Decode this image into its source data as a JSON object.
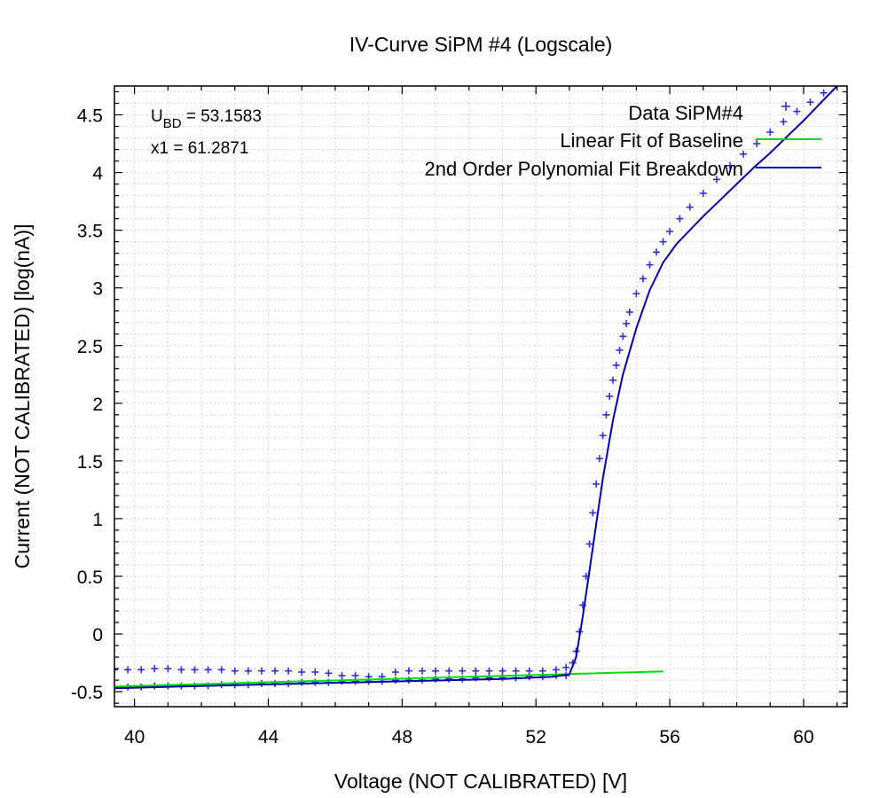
{
  "chart_data": {
    "type": "scatter",
    "title": "IV-Curve SiPM #4 (Logscale)",
    "xlabel": "Voltage (NOT CALIBRATED) [V]",
    "ylabel": "Current (NOT CALIBRATED) [log(nA)]",
    "xlim": [
      39.4,
      61.3
    ],
    "ylim": [
      -0.63,
      4.75
    ],
    "xticks": [
      40,
      44,
      48,
      52,
      56,
      60
    ],
    "yticks": [
      -0.5,
      0,
      0.5,
      1,
      1.5,
      2,
      2.5,
      3,
      3.5,
      4,
      4.5
    ],
    "xtick_labels": [
      "40",
      "44",
      "48",
      "52",
      "56",
      "60"
    ],
    "ytick_labels": [
      "-0.5",
      "0",
      "0.5",
      "1",
      "1.5",
      "2",
      "2.5",
      "3",
      "3.5",
      "4",
      "4.5"
    ],
    "grid": true,
    "legend_position": "top-right",
    "annotations": {
      "ubd_prefix": "U",
      "ubd_sub": "BD",
      "ubd_value": " = 53.1583",
      "x1": "x1 = 61.2871"
    },
    "series": [
      {
        "name": "Data SiPM#4",
        "kind": "points",
        "marker": "+",
        "color": "#2f2fe0",
        "x": [
          39.4,
          39.8,
          40.2,
          40.6,
          41.0,
          41.4,
          41.8,
          42.2,
          42.6,
          43.0,
          43.4,
          43.8,
          44.2,
          44.6,
          45.0,
          45.4,
          45.8,
          46.2,
          46.6,
          47.0,
          47.4,
          47.8,
          48.2,
          48.6,
          49.0,
          49.4,
          49.8,
          50.2,
          50.6,
          51.0,
          51.4,
          51.8,
          52.2,
          52.6,
          52.9,
          53.1,
          53.2,
          53.3,
          53.4,
          53.5,
          53.6,
          53.7,
          53.8,
          53.9,
          54.0,
          54.1,
          54.2,
          54.3,
          54.4,
          54.5,
          54.6,
          54.7,
          54.8,
          55.0,
          55.2,
          55.4,
          55.6,
          55.8,
          56.0,
          56.3,
          56.6,
          57.0,
          57.4,
          57.8,
          58.2,
          58.6,
          59.0,
          59.4,
          59.8,
          60.2,
          60.6,
          61.0,
          39.4,
          39.8,
          40.2,
          40.6,
          41.0,
          41.4,
          41.8,
          42.2,
          42.6,
          43.0,
          43.4,
          43.8,
          44.2,
          44.6,
          45.0,
          45.4,
          45.8,
          46.2,
          46.6,
          47.0,
          47.4,
          47.8,
          48.2,
          48.6,
          49.0,
          49.4,
          49.8,
          50.2,
          50.6,
          51.0,
          51.4,
          51.8,
          52.2,
          52.6,
          52.9
        ],
        "y": [
          -0.31,
          -0.31,
          -0.31,
          -0.3,
          -0.3,
          -0.31,
          -0.31,
          -0.31,
          -0.31,
          -0.32,
          -0.32,
          -0.32,
          -0.32,
          -0.32,
          -0.33,
          -0.33,
          -0.34,
          -0.36,
          -0.36,
          -0.37,
          -0.37,
          -0.33,
          -0.32,
          -0.32,
          -0.32,
          -0.32,
          -0.32,
          -0.32,
          -0.32,
          -0.32,
          -0.32,
          -0.32,
          -0.32,
          -0.31,
          -0.29,
          -0.25,
          -0.15,
          0.02,
          0.25,
          0.5,
          0.78,
          1.05,
          1.3,
          1.52,
          1.72,
          1.9,
          2.06,
          2.2,
          2.33,
          2.46,
          2.58,
          2.69,
          2.79,
          2.95,
          3.08,
          3.2,
          3.31,
          3.4,
          3.49,
          3.6,
          3.7,
          3.82,
          3.94,
          4.06,
          4.16,
          4.25,
          4.35,
          4.44,
          4.53,
          4.61,
          4.69,
          4.76,
          -0.46,
          -0.46,
          -0.46,
          -0.45,
          -0.45,
          -0.45,
          -0.45,
          -0.45,
          -0.44,
          -0.44,
          -0.44,
          -0.43,
          -0.43,
          -0.43,
          -0.42,
          -0.42,
          -0.42,
          -0.41,
          -0.41,
          -0.41,
          -0.41,
          -0.4,
          -0.4,
          -0.4,
          -0.39,
          -0.39,
          -0.39,
          -0.38,
          -0.38,
          -0.38,
          -0.38,
          -0.37,
          -0.37,
          -0.36,
          -0.36
        ]
      },
      {
        "name": "Linear Fit of Baseline",
        "kind": "line",
        "color": "#00e000",
        "x": [
          39.4,
          55.8
        ],
        "y": [
          -0.455,
          -0.325
        ]
      },
      {
        "name": "2nd Order Polynomial Fit Breakdown",
        "kind": "line",
        "color": "#0000b0",
        "x": [
          39.4,
          42.0,
          45.0,
          48.0,
          51.0,
          52.5,
          53.0,
          53.2,
          53.4,
          53.6,
          53.8,
          54.0,
          54.3,
          54.6,
          55.0,
          55.4,
          55.8,
          56.2,
          56.6,
          57.0,
          57.5,
          58.0,
          58.5,
          59.0,
          59.5,
          60.0,
          60.5,
          61.0
        ],
        "y": [
          -0.47,
          -0.45,
          -0.43,
          -0.41,
          -0.39,
          -0.37,
          -0.35,
          -0.2,
          0.15,
          0.55,
          0.95,
          1.35,
          1.85,
          2.25,
          2.65,
          2.98,
          3.22,
          3.38,
          3.5,
          3.62,
          3.76,
          3.9,
          4.04,
          4.17,
          4.31,
          4.45,
          4.6,
          4.75
        ]
      }
    ]
  }
}
